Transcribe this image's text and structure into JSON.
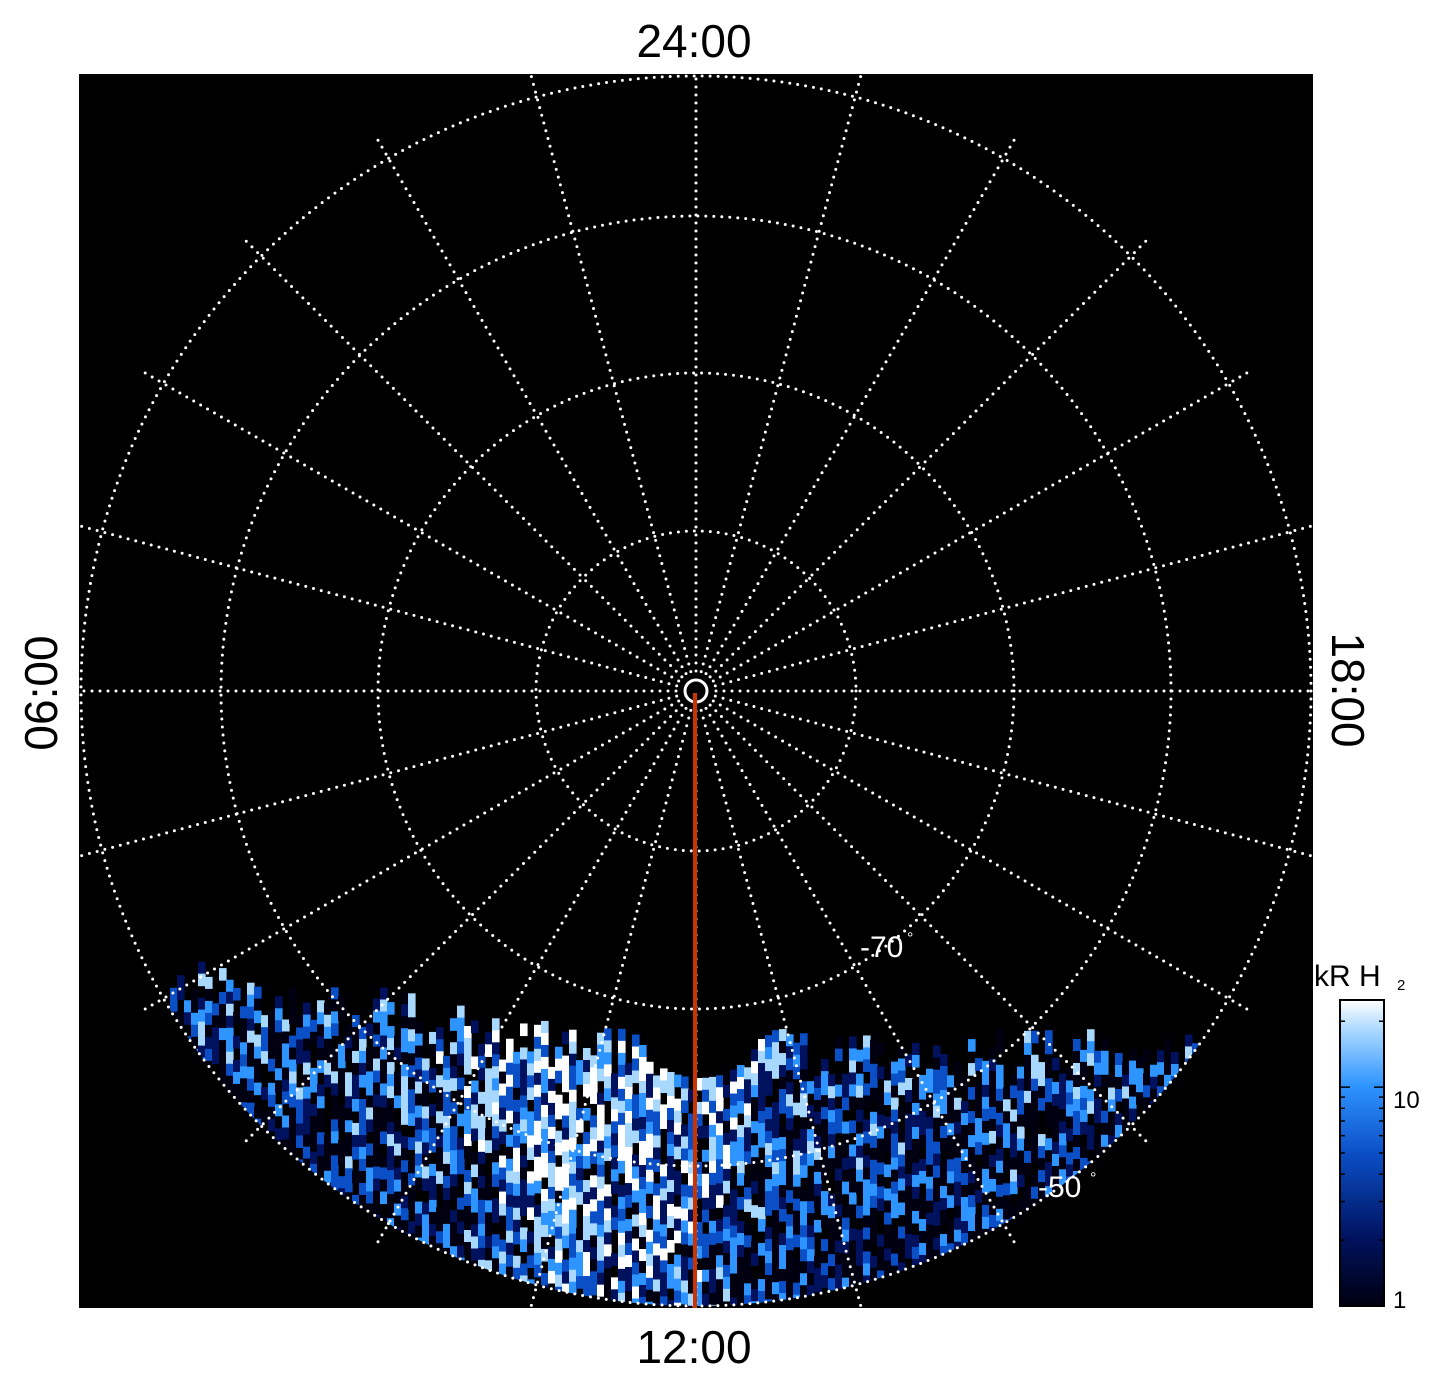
{
  "local_time_labels": {
    "top": "24:00",
    "bottom": "12:00",
    "left": "06:00",
    "right": "18:00"
  },
  "latitude_labels": {
    "inner": "-70",
    "outer": "-50",
    "degree_symbol": "°"
  },
  "colorbar": {
    "title": "kR H",
    "subscript": "2",
    "ticks": [
      "10",
      "1"
    ],
    "scale": "log",
    "range_kR": [
      1,
      25
    ],
    "colors": [
      "#000010",
      "#00125e",
      "#0b4fc6",
      "#2e94ff",
      "#a9d8ff",
      "#ffffff"
    ]
  },
  "grid": {
    "line_color": "#ffffff",
    "style": "dotted",
    "latitude_circles_deg": [
      -50,
      -60,
      -70,
      -80
    ],
    "meridian_count": 24
  },
  "meridian_line": {
    "color": "#cc3300",
    "local_time": "12:00"
  },
  "background_color": "#000000",
  "emission": {
    "colormap": "blue",
    "region": "dayside equatorward of -70°"
  }
}
